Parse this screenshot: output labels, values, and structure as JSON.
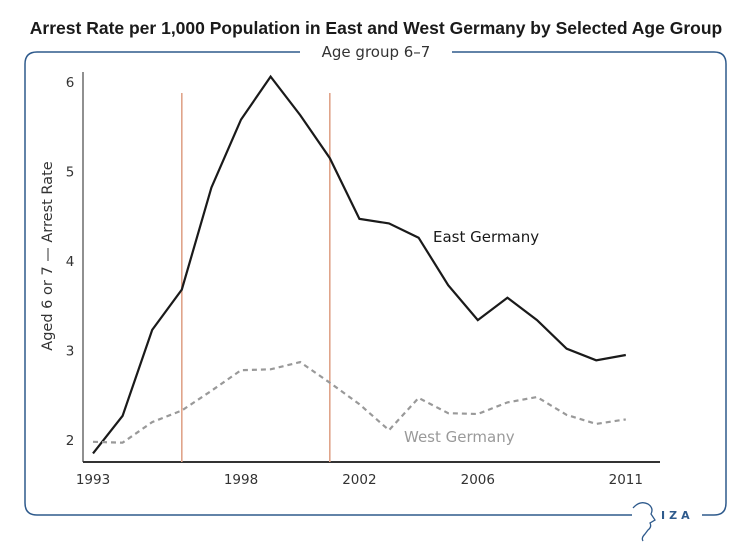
{
  "chart_data": {
    "type": "line",
    "title": "Arrest Rate per 1,000 Population in East and West Germany by Selected Age Group",
    "subtitle": "Age group 6–7",
    "xlabel": "",
    "ylabel": "Aged 6 or 7 — Arrest Rate",
    "x": [
      1993,
      1994,
      1995,
      1996,
      1997,
      1998,
      1999,
      2000,
      2001,
      2002,
      2003,
      2004,
      2005,
      2006,
      2007,
      2008,
      2009,
      2010,
      2011
    ],
    "xlim": [
      1993,
      2011
    ],
    "ylim": [
      1.75,
      6.15
    ],
    "x_ticks": [
      1993,
      1998,
      2002,
      2006,
      2011
    ],
    "x_tick_labels": [
      "1993",
      "1998",
      "2002",
      "2006",
      "2011"
    ],
    "y_ticks": [
      2,
      3,
      4,
      5,
      6
    ],
    "y_tick_labels": [
      "2",
      "3",
      "4",
      "5",
      "6"
    ],
    "grid": false,
    "series": [
      {
        "name": "East Germany",
        "style": "solid",
        "color": "#1a1a1a",
        "values": [
          1.85,
          2.27,
          3.23,
          3.68,
          4.82,
          5.58,
          6.06,
          5.63,
          5.15,
          4.47,
          4.42,
          4.26,
          3.73,
          3.34,
          3.59,
          3.34,
          3.02,
          2.89,
          2.95
        ]
      },
      {
        "name": "West Germany",
        "style": "dashed",
        "color": "#999999",
        "values": [
          1.98,
          1.97,
          2.2,
          2.33,
          2.55,
          2.78,
          2.79,
          2.87,
          2.64,
          2.4,
          2.11,
          2.47,
          2.3,
          2.29,
          2.42,
          2.48,
          2.28,
          2.18,
          2.23
        ]
      }
    ],
    "annotations": [
      {
        "type": "vertical-line",
        "x": 1996,
        "color": "#e0a48a"
      },
      {
        "type": "vertical-line",
        "x": 2001,
        "color": "#e0a48a"
      }
    ],
    "series_labels": [
      {
        "text": "East Germany",
        "series": "East Germany",
        "color": "#1a1a1a"
      },
      {
        "text": "West Germany",
        "series": "West Germany",
        "color": "#9a9a9a"
      }
    ]
  },
  "frame": {
    "color": "#2e5a8c"
  },
  "logo": {
    "text": "IZA"
  }
}
